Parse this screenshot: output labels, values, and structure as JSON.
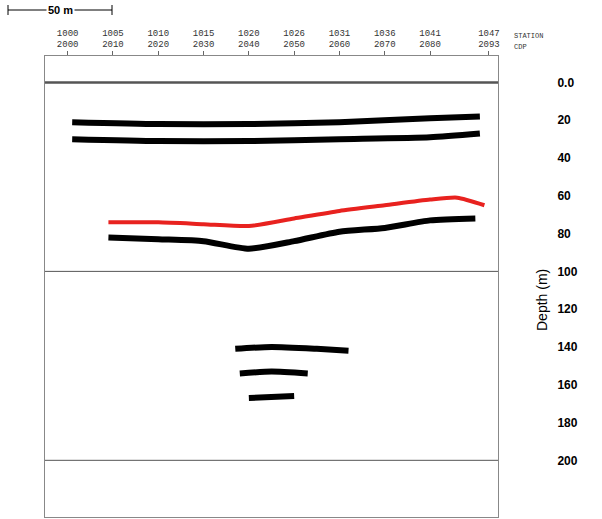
{
  "chart_data": {
    "type": "line",
    "x_label": "CDP",
    "x2_label": "STATION",
    "ylabel": "Depth (m)",
    "scale_bar": {
      "text": "50 m"
    },
    "xlim": [
      1995,
      2095
    ],
    "xticks": [
      2000,
      2010,
      2020,
      2030,
      2040,
      2050,
      2060,
      2070,
      2080,
      2093
    ],
    "x2ticks": [
      {
        "value": 2000,
        "label": "1000"
      },
      {
        "value": 2010,
        "label": "1005"
      },
      {
        "value": 2020,
        "label": "1010"
      },
      {
        "value": 2030,
        "label": "1015"
      },
      {
        "value": 2040,
        "label": "1020"
      },
      {
        "value": 2050,
        "label": "1026"
      },
      {
        "value": 2060,
        "label": "1031"
      },
      {
        "value": 2070,
        "label": "1036"
      },
      {
        "value": 2080,
        "label": "1041"
      },
      {
        "value": 2093,
        "label": "1047"
      }
    ],
    "ylim": [
      230,
      -14
    ],
    "yticks": [
      {
        "value": 0,
        "label": "0.0"
      },
      20,
      40,
      60,
      80,
      100,
      120,
      140,
      160,
      180,
      200
    ],
    "reference_lines": [
      0,
      100,
      200
    ],
    "series": [
      {
        "color": "#000000",
        "x": [
          2001,
          2020,
          2040,
          2060,
          2080,
          2091
        ],
        "values": [
          21,
          22,
          22,
          21,
          19,
          18
        ]
      },
      {
        "color": "#000000",
        "x": [
          2001,
          2020,
          2040,
          2060,
          2080,
          2091
        ],
        "values": [
          30,
          31,
          31,
          30,
          29,
          27
        ]
      },
      {
        "color": "#000000",
        "x": [
          2009,
          2020,
          2030,
          2040,
          2050,
          2060,
          2070,
          2080,
          2090
        ],
        "values": [
          82,
          83,
          84,
          88,
          84,
          79,
          77,
          73,
          72
        ]
      },
      {
        "color": "#e8221f",
        "x": [
          2009,
          2020,
          2030,
          2040,
          2050,
          2060,
          2070,
          2080,
          2086,
          2092
        ],
        "values": [
          74,
          74,
          75,
          76,
          72,
          68,
          65,
          62,
          61,
          65
        ]
      },
      {
        "color": "#000000",
        "x": [
          2037,
          2045,
          2055,
          2062
        ],
        "values": [
          141,
          140,
          141,
          142
        ]
      },
      {
        "color": "#000000",
        "x": [
          2038,
          2045,
          2053
        ],
        "values": [
          154,
          153,
          154
        ]
      },
      {
        "color": "#000000",
        "x": [
          2040,
          2050
        ],
        "values": [
          167,
          166
        ]
      }
    ]
  }
}
